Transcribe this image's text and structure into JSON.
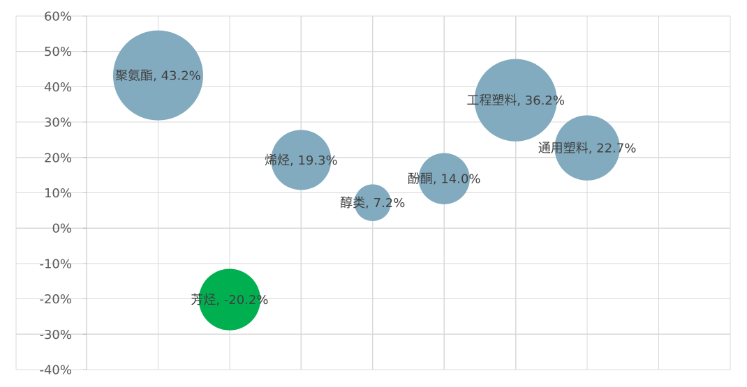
{
  "chart_data": {
    "type": "bubble",
    "title": "",
    "xlabel": "",
    "ylabel": "",
    "xlim": [
      0,
      9
    ],
    "ylim": [
      -40,
      60
    ],
    "y_tick_step": 10,
    "y_tick_format": "percent",
    "grid": true,
    "legend": "none",
    "colors": {
      "positive": "#82abbf",
      "negative": "#00b050"
    },
    "points": [
      {
        "label": "聚氨酯",
        "x": 1,
        "y": 43.2,
        "size": 43.2,
        "text": "聚氨酯, 43.2%"
      },
      {
        "label": "芳烃",
        "x": 2,
        "y": -20.2,
        "size": 20.2,
        "text": "芳烃, -20.2%"
      },
      {
        "label": "烯烃",
        "x": 3,
        "y": 19.3,
        "size": 19.3,
        "text": "烯烃, 19.3%"
      },
      {
        "label": "醇类",
        "x": 4,
        "y": 7.2,
        "size": 7.2,
        "text": "醇类, 7.2%"
      },
      {
        "label": "酚酮",
        "x": 5,
        "y": 14.0,
        "size": 14.0,
        "text": "酚酮, 14.0%"
      },
      {
        "label": "工程塑料",
        "x": 6,
        "y": 36.2,
        "size": 36.2,
        "text": "工程塑料, 36.2%"
      },
      {
        "label": "通用塑料",
        "x": 7,
        "y": 22.7,
        "size": 22.7,
        "text": "通用塑料, 22.7%"
      }
    ]
  }
}
